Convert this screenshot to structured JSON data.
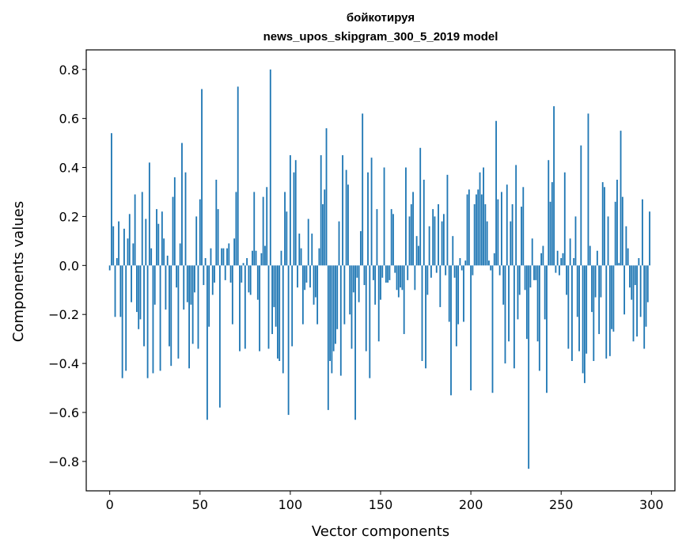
{
  "chart_data": {
    "type": "bar",
    "title": "бойкотируя",
    "subtitle": "news_upos_skipgram_300_5_2019 model",
    "xlabel": "Vector components",
    "ylabel": "Components values",
    "xlim": [
      -13,
      313
    ],
    "ylim": [
      -0.92,
      0.88
    ],
    "xticks": [
      0,
      50,
      100,
      150,
      200,
      250,
      300
    ],
    "yticks": [
      -0.8,
      -0.6,
      -0.4,
      -0.2,
      0.0,
      0.2,
      0.4,
      0.6,
      0.8
    ],
    "ytick_labels": [
      "−0.8",
      "−0.6",
      "−0.4",
      "−0.2",
      "0.0",
      "0.2",
      "0.4",
      "0.6",
      "0.8"
    ],
    "grid": false,
    "bar_color": "#1f77b4",
    "values": [
      -0.02,
      0.54,
      0.16,
      -0.21,
      0.03,
      0.18,
      -0.21,
      -0.46,
      0.15,
      -0.43,
      0.11,
      0.21,
      -0.15,
      0.09,
      0.29,
      -0.19,
      -0.26,
      -0.22,
      0.3,
      -0.33,
      0.19,
      -0.46,
      0.42,
      0.07,
      -0.44,
      -0.16,
      0.23,
      0.17,
      -0.43,
      0.22,
      0.11,
      -0.18,
      0.04,
      -0.33,
      -0.41,
      0.28,
      0.36,
      -0.09,
      -0.38,
      0.09,
      0.5,
      -0.18,
      0.38,
      -0.15,
      -0.42,
      -0.16,
      -0.32,
      -0.11,
      0.2,
      -0.34,
      0.27,
      0.72,
      -0.08,
      0.03,
      -0.63,
      -0.25,
      0.07,
      -0.12,
      -0.07,
      0.35,
      0.23,
      -0.58,
      0.07,
      0.07,
      -0.06,
      0.07,
      0.09,
      -0.07,
      -0.24,
      0.11,
      0.3,
      0.73,
      -0.35,
      -0.07,
      0.01,
      -0.34,
      0.03,
      -0.11,
      -0.12,
      0.06,
      0.3,
      0.06,
      -0.14,
      -0.35,
      0.05,
      0.28,
      0.08,
      0.32,
      -0.34,
      0.8,
      -0.28,
      -0.17,
      -0.25,
      -0.38,
      -0.39,
      0.06,
      -0.44,
      0.3,
      0.22,
      -0.61,
      0.45,
      -0.33,
      0.38,
      0.43,
      -0.09,
      0.13,
      0.07,
      -0.24,
      -0.1,
      -0.07,
      0.19,
      -0.09,
      0.13,
      -0.16,
      -0.13,
      -0.24,
      0.07,
      0.45,
      0.25,
      0.31,
      0.56,
      -0.59,
      -0.39,
      -0.44,
      -0.35,
      -0.32,
      -0.26,
      0.18,
      -0.45,
      0.45,
      -0.24,
      0.39,
      0.33,
      -0.2,
      -0.34,
      -0.11,
      -0.63,
      -0.05,
      -0.15,
      0.14,
      0.62,
      -0.08,
      -0.35,
      0.38,
      -0.46,
      0.44,
      -0.06,
      -0.16,
      0.23,
      -0.31,
      -0.14,
      -0.05,
      0.4,
      -0.07,
      -0.07,
      -0.06,
      0.23,
      0.21,
      -0.03,
      -0.1,
      -0.13,
      -0.09,
      -0.1,
      -0.28,
      0.4,
      -0.06,
      0.2,
      0.25,
      0.3,
      -0.1,
      0.12,
      0.08,
      0.48,
      -0.39,
      0.35,
      -0.42,
      -0.12,
      0.16,
      -0.05,
      0.23,
      0.2,
      -0.03,
      0.25,
      -0.17,
      0.18,
      0.21,
      -0.04,
      0.37,
      -0.23,
      -0.53,
      0.12,
      -0.05,
      -0.33,
      -0.24,
      0.03,
      -0.02,
      -0.23,
      0.02,
      0.29,
      0.31,
      -0.51,
      -0.04,
      0.25,
      0.29,
      0.31,
      0.38,
      0.29,
      0.4,
      0.25,
      0.18,
      0.02,
      -0.02,
      -0.52,
      0.05,
      0.59,
      0.27,
      -0.04,
      0.3,
      -0.16,
      -0.4,
      0.33,
      -0.31,
      0.18,
      0.25,
      -0.42,
      0.41,
      -0.22,
      -0.12,
      0.24,
      0.32,
      -0.1,
      -0.3,
      -0.83,
      -0.09,
      0.11,
      -0.06,
      -0.06,
      -0.31,
      -0.43,
      0.05,
      0.08,
      -0.22,
      -0.52,
      0.43,
      0.26,
      0.34,
      0.65,
      -0.03,
      0.06,
      -0.04,
      0.03,
      0.05,
      0.38,
      -0.12,
      -0.34,
      0.11,
      -0.39,
      0.03,
      0.2,
      -0.21,
      -0.35,
      0.49,
      -0.44,
      -0.48,
      -0.36,
      0.62,
      0.08,
      -0.19,
      -0.39,
      -0.13,
      0.06,
      -0.28,
      -0.13,
      0.34,
      0.32,
      -0.38,
      0.2,
      -0.37,
      -0.26,
      -0.27,
      0.26,
      0.35,
      0.01,
      0.55,
      0.28,
      -0.2,
      0.16,
      0.07,
      -0.09,
      -0.14,
      -0.31,
      -0.08,
      -0.29,
      0.03,
      -0.21,
      0.27,
      -0.34,
      -0.25,
      -0.15,
      0.22
    ]
  }
}
